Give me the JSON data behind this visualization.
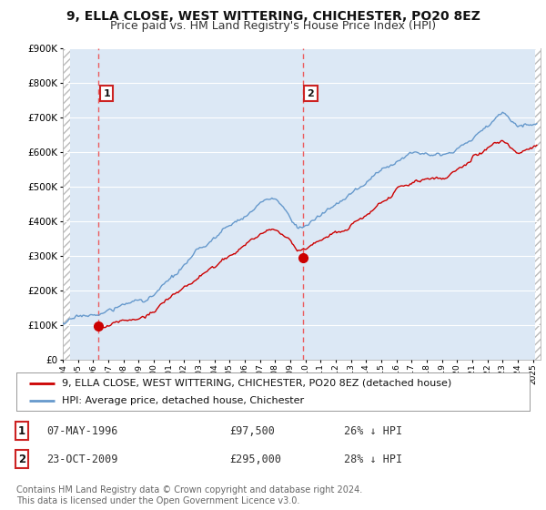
{
  "title": "9, ELLA CLOSE, WEST WITTERING, CHICHESTER, PO20 8EZ",
  "subtitle": "Price paid vs. HM Land Registry's House Price Index (HPI)",
  "legend_line1": "9, ELLA CLOSE, WEST WITTERING, CHICHESTER, PO20 8EZ (detached house)",
  "legend_line2": "HPI: Average price, detached house, Chichester",
  "transaction1_date": "07-MAY-1996",
  "transaction1_price": "£97,500",
  "transaction1_hpi": "26% ↓ HPI",
  "transaction2_date": "23-OCT-2009",
  "transaction2_price": "£295,000",
  "transaction2_hpi": "28% ↓ HPI",
  "footnote": "Contains HM Land Registry data © Crown copyright and database right 2024.\nThis data is licensed under the Open Government Licence v3.0.",
  "price_color": "#cc0000",
  "hpi_color": "#6699cc",
  "vline_color": "#ee4444",
  "bg_color": "#ffffff",
  "plot_bg": "#dce8f5",
  "grid_color": "#ffffff",
  "ylim": [
    0,
    900000
  ],
  "xmin": 1994.0,
  "xmax": 2025.5,
  "transaction1_x": 1996.36,
  "transaction1_y": 97500,
  "transaction2_x": 2009.81,
  "transaction2_y": 295000,
  "title_fontsize": 10,
  "subtitle_fontsize": 9,
  "tick_fontsize": 7.5,
  "legend_fontsize": 8,
  "table_fontsize": 8.5,
  "footer_fontsize": 7
}
